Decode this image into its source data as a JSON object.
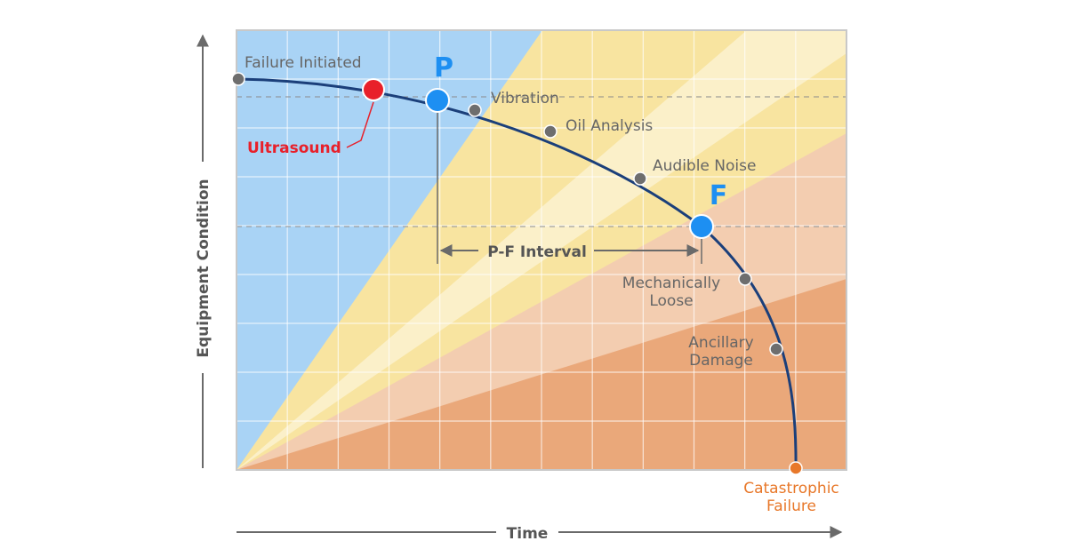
{
  "diagram": {
    "axes": {
      "y_label": "Equipment Condition",
      "x_label": "Time"
    },
    "markers": {
      "p": "P",
      "f": "F"
    },
    "interval_label": "P-F Interval",
    "points": {
      "failure_initiated": "Failure Initiated",
      "ultrasound": "Ultrasound",
      "vibration": "Vibration",
      "oil_analysis": "Oil Analysis",
      "audible_noise": "Audible Noise",
      "mechanically_loose_1": "Mechanically",
      "mechanically_loose_2": "Loose",
      "ancillary_damage_1": "Ancillary",
      "ancillary_damage_2": "Damage",
      "catastrophic_1": "Catastrophic",
      "catastrophic_2": "Failure"
    },
    "colors": {
      "blue_zone": "#a9d3f5",
      "yellow_zone": "#f8e4a0",
      "light_yellow_zone": "#fbf0c9",
      "peach_zone": "#f3cdb0",
      "orange_zone": "#eaa87a",
      "curve": "#1b3f7a",
      "point_gray": "#6e6e6e",
      "ultrasound_red": "#e8202a",
      "pf_blue": "#1d8ff2",
      "catastrophic_orange": "#e8782a",
      "text_gray": "#6a6a6a"
    }
  }
}
